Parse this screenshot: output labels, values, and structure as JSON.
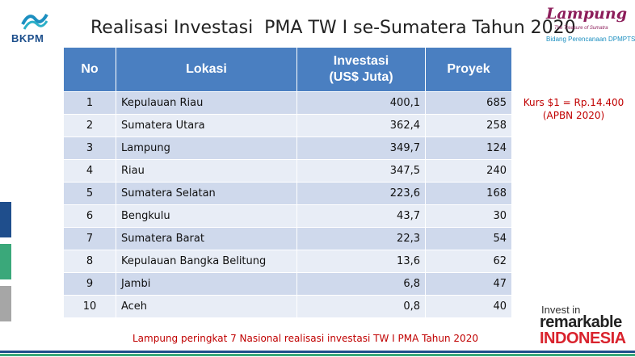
{
  "header": {
    "org_logo_text": "BKPM",
    "title": "Realisasi Investasi  PMA TW I se-Sumatera Tahun 2020",
    "region_logo": {
      "word": "Lampung",
      "tagline": "The Treasure of Sumatra",
      "subtitle": "Bidang Perencanaan DPMPTSP"
    }
  },
  "table": {
    "columns": {
      "no": "No",
      "lokasi": "Lokasi",
      "investasi_line1": "Investasi",
      "investasi_line2": "(US$ Juta)",
      "proyek": "Proyek"
    },
    "rows": [
      {
        "no": "1",
        "lokasi": "Kepulauan Riau",
        "investasi": "400,1",
        "proyek": "685"
      },
      {
        "no": "2",
        "lokasi": "Sumatera Utara",
        "investasi": "362,4",
        "proyek": "258"
      },
      {
        "no": "3",
        "lokasi": "Lampung",
        "investasi": "349,7",
        "proyek": "124"
      },
      {
        "no": "4",
        "lokasi": "Riau",
        "investasi": "347,5",
        "proyek": "240"
      },
      {
        "no": "5",
        "lokasi": "Sumatera Selatan",
        "investasi": "223,6",
        "proyek": "168"
      },
      {
        "no": "6",
        "lokasi": "Bengkulu",
        "investasi": "43,7",
        "proyek": "30"
      },
      {
        "no": "7",
        "lokasi": "Sumatera Barat",
        "investasi": "22,3",
        "proyek": "54"
      },
      {
        "no": "8",
        "lokasi": "Kepulauan Bangka Belitung",
        "investasi": "13,6",
        "proyek": "62"
      },
      {
        "no": "9",
        "lokasi": "Jambi",
        "investasi": "6,8",
        "proyek": "47"
      },
      {
        "no": "10",
        "lokasi": "Aceh",
        "investasi": "0,8",
        "proyek": "40"
      }
    ]
  },
  "note": {
    "kurs_line1": "Kurs  $1 = Rp.14.400",
    "kurs_line2": "(APBN 2020)"
  },
  "footer": {
    "caption": "Lampung peringkat 7 Nasional realisasi investasi TW I PMA  Tahun 2020",
    "brand_line1": "Invest in",
    "brand_line2": "remarkable",
    "brand_line3": "INDONESIA"
  },
  "colors": {
    "header_blue": "#4a7fc1",
    "row_odd": "#cfd9ec",
    "row_even": "#e8edf6",
    "accent_red": "#c00000",
    "side_navy": "#1f4e8c",
    "side_green": "#3aa87a",
    "side_gray": "#a6a6a6"
  }
}
